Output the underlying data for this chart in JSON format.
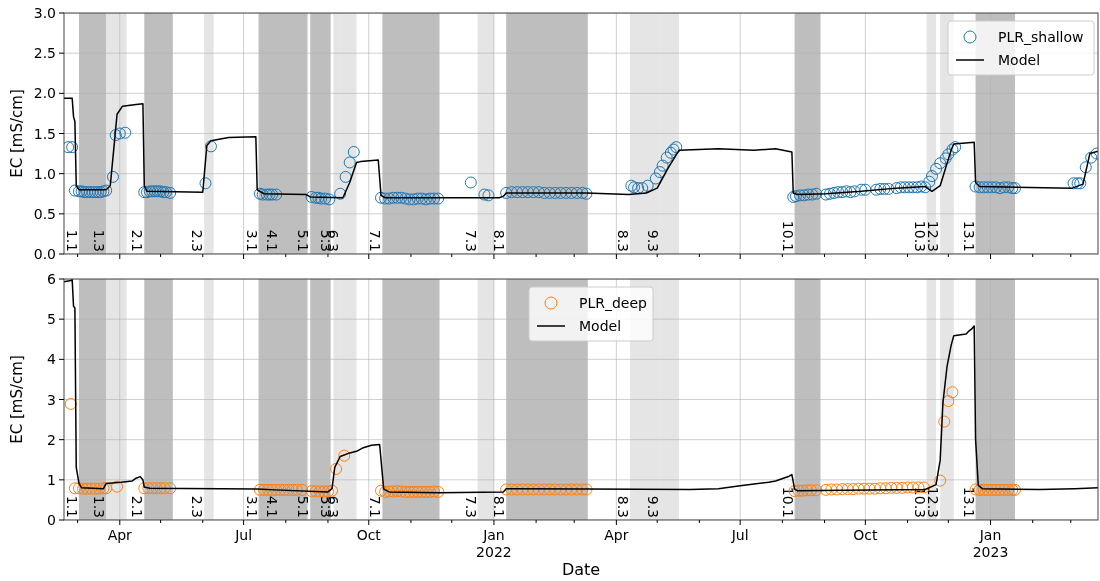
{
  "chart_data": [
    {
      "type": "line",
      "ylabel": "EC [mS/cm]",
      "xlim": [
        "2021-02-19",
        "2023-03-21"
      ],
      "ylim": [
        0,
        3
      ],
      "yticks": [
        {
          "value": 0,
          "label": "0.0"
        },
        0.5,
        {
          "value": 1,
          "label": "1.0"
        },
        1.5,
        {
          "value": 2,
          "label": "2.0"
        },
        2.5,
        {
          "value": 3,
          "label": "3.0"
        }
      ],
      "xticks": [
        {
          "value": "2021-03-01",
          "label": null
        },
        "2021-04-01",
        {
          "value": "2021-05-01",
          "label": null
        },
        {
          "value": "2021-06-01",
          "label": null
        },
        "2021-07-01",
        {
          "value": "2021-08-01",
          "label": null
        },
        {
          "value": "2021-09-01",
          "label": null
        },
        "2021-10-01",
        {
          "value": "2021-11-01",
          "label": null
        },
        {
          "value": "2021-12-01",
          "label": null
        },
        "2022-01-01",
        {
          "value": "2022-02-01",
          "label": null
        },
        {
          "value": "2022-03-01",
          "label": null
        },
        "2022-04-01",
        {
          "value": "2022-05-01",
          "label": null
        },
        {
          "value": "2022-06-01",
          "label": null
        },
        "2022-07-01",
        {
          "value": "2022-08-01",
          "label": null
        },
        {
          "value": "2022-09-01",
          "label": null
        },
        "2022-10-01",
        {
          "value": "2022-11-01",
          "label": null
        },
        {
          "value": "2022-12-01",
          "label": null
        },
        "2023-01-01",
        {
          "value": "2023-02-01",
          "label": null
        },
        {
          "value": "2023-03-01",
          "label": null
        }
      ],
      "tick_labels": "y",
      "grid": true,
      "legend": "top right",
      "bands": [
        {
          "axis": "x",
          "from": "2021-03-02",
          "to": "2021-03-22",
          "label": "1.1",
          "color": "#bebebe"
        },
        {
          "axis": "x",
          "from": "2021-03-22",
          "to": "2021-04-06",
          "label": "1.3",
          "color": "#e5e5e5"
        },
        {
          "axis": "x",
          "from": "2021-04-19",
          "to": "2021-05-10",
          "label": "2.1",
          "color": "#bebebe"
        },
        {
          "axis": "x",
          "from": "2021-06-02",
          "to": "2021-06-09",
          "label": "2.3",
          "color": "#e5e5e5"
        },
        {
          "axis": "x",
          "from": "2021-07-12",
          "to": "2021-07-27",
          "label": "3.1",
          "color": "#bebebe"
        },
        {
          "axis": "x",
          "from": "2021-07-27",
          "to": "2021-08-17",
          "label": "4.1",
          "color": "#bebebe"
        },
        {
          "axis": "x",
          "from": "2021-08-19",
          "to": "2021-09-03",
          "label": "5.1",
          "color": "#bebebe"
        },
        {
          "axis": "x",
          "from": "2021-09-05",
          "to": "2021-09-10",
          "label": "5.3",
          "color": "#e5e5e5"
        },
        {
          "axis": "x",
          "from": "2021-09-10",
          "to": "2021-09-22",
          "label": "6.3",
          "color": "#e5e5e5"
        },
        {
          "axis": "x",
          "from": "2021-10-11",
          "to": "2021-11-22",
          "label": "7.1",
          "color": "#bebebe"
        },
        {
          "axis": "x",
          "from": "2021-12-20",
          "to": "2022-01-01",
          "label": "7.3",
          "color": "#e5e5e5"
        },
        {
          "axis": "x",
          "from": "2022-01-10",
          "to": "2022-03-11",
          "label": "8.1",
          "color": "#bebebe"
        },
        {
          "axis": "x",
          "from": "2022-04-11",
          "to": "2022-05-03",
          "label": "8.3",
          "color": "#e5e5e5"
        },
        {
          "axis": "x",
          "from": "2022-05-03",
          "to": "2022-05-17",
          "label": "9.3",
          "color": "#e5e5e5"
        },
        {
          "axis": "x",
          "from": "2022-08-10",
          "to": "2022-08-29",
          "label": "10.1",
          "color": "#bebebe"
        },
        {
          "axis": "x",
          "from": "2022-11-15",
          "to": "2022-11-22",
          "label": "10.3",
          "color": "#e5e5e5"
        },
        {
          "axis": "x",
          "from": "2022-11-25",
          "to": "2022-12-05",
          "label": "12.3",
          "color": "#e5e5e5"
        },
        {
          "axis": "x",
          "from": "2022-12-21",
          "to": "2023-01-19",
          "label": "13.1",
          "color": "#bebebe"
        }
      ],
      "series": [
        {
          "name": "PLR_shallow",
          "type": "scatter",
          "marker": "circle",
          "color": "#1f77b4",
          "x": [
            "2021-02-22",
            "2021-02-25",
            "2021-02-27",
            "2021-03-02",
            "2021-03-04",
            "2021-03-06",
            "2021-03-08",
            "2021-03-10",
            "2021-03-12",
            "2021-03-14",
            "2021-03-16",
            "2021-03-18",
            "2021-03-20",
            "2021-03-22",
            "2021-03-27",
            "2021-03-29",
            "2021-04-01",
            "2021-04-05",
            "2021-04-19",
            "2021-04-21",
            "2021-04-23",
            "2021-04-25",
            "2021-04-27",
            "2021-04-29",
            "2021-05-01",
            "2021-05-03",
            "2021-05-05",
            "2021-05-08",
            "2021-06-03",
            "2021-06-07",
            "2021-07-13",
            "2021-07-15",
            "2021-07-18",
            "2021-07-20",
            "2021-07-22",
            "2021-07-25",
            "2021-08-20",
            "2021-08-23",
            "2021-08-25",
            "2021-08-27",
            "2021-08-30",
            "2021-09-02",
            "2021-09-10",
            "2021-09-14",
            "2021-09-17",
            "2021-09-20",
            "2021-10-10",
            "2021-10-13",
            "2021-10-16",
            "2021-10-19",
            "2021-10-22",
            "2021-10-25",
            "2021-10-28",
            "2021-10-31",
            "2021-11-03",
            "2021-11-06",
            "2021-11-09",
            "2021-11-12",
            "2021-11-15",
            "2021-11-18",
            "2021-11-21",
            "2021-12-15",
            "2021-12-25",
            "2021-12-28",
            "2022-01-10",
            "2022-01-14",
            "2022-01-18",
            "2022-01-22",
            "2022-01-26",
            "2022-01-30",
            "2022-02-03",
            "2022-02-07",
            "2022-02-11",
            "2022-02-15",
            "2022-02-19",
            "2022-02-23",
            "2022-02-27",
            "2022-03-03",
            "2022-03-07",
            "2022-03-10",
            "2022-04-12",
            "2022-04-14",
            "2022-04-17",
            "2022-04-20",
            "2022-04-24",
            "2022-04-30",
            "2022-05-03",
            "2022-05-05",
            "2022-05-08",
            "2022-05-11",
            "2022-05-13",
            "2022-05-15",
            "2022-08-09",
            "2022-08-11",
            "2022-08-14",
            "2022-08-17",
            "2022-08-20",
            "2022-08-23",
            "2022-08-26",
            "2022-09-02",
            "2022-09-05",
            "2022-09-08",
            "2022-09-11",
            "2022-09-14",
            "2022-09-17",
            "2022-09-20",
            "2022-09-23",
            "2022-09-28",
            "2022-10-01",
            "2022-10-09",
            "2022-10-12",
            "2022-10-15",
            "2022-10-18",
            "2022-10-24",
            "2022-10-27",
            "2022-10-30",
            "2022-11-02",
            "2022-11-05",
            "2022-11-08",
            "2022-11-11",
            "2022-11-14",
            "2022-11-17",
            "2022-11-19",
            "2022-11-22",
            "2022-11-25",
            "2022-11-29",
            "2022-12-01",
            "2022-12-04",
            "2022-12-06",
            "2022-12-21",
            "2022-12-24",
            "2022-12-27",
            "2022-12-30",
            "2023-01-02",
            "2023-01-05",
            "2023-01-08",
            "2023-01-11",
            "2023-01-14",
            "2023-01-17",
            "2023-01-19",
            "2023-03-03",
            "2023-03-06",
            "2023-03-08",
            "2023-03-12",
            "2023-03-16",
            "2023-03-20"
          ],
          "values": [
            1.33,
            1.33,
            0.79,
            0.78,
            0.78,
            0.77,
            0.77,
            0.77,
            0.77,
            0.77,
            0.77,
            0.77,
            0.78,
            0.79,
            0.96,
            1.48,
            1.5,
            1.51,
            0.77,
            0.77,
            0.78,
            0.78,
            0.78,
            0.78,
            0.78,
            0.77,
            0.77,
            0.76,
            0.88,
            1.34,
            0.75,
            0.74,
            0.74,
            0.74,
            0.74,
            0.74,
            0.71,
            0.7,
            0.7,
            0.69,
            0.69,
            0.68,
            0.75,
            0.96,
            1.14,
            1.27,
            0.7,
            0.69,
            0.69,
            0.7,
            0.7,
            0.7,
            0.69,
            0.68,
            0.68,
            0.69,
            0.69,
            0.68,
            0.69,
            0.69,
            0.69,
            0.89,
            0.74,
            0.73,
            0.76,
            0.77,
            0.77,
            0.77,
            0.77,
            0.77,
            0.77,
            0.76,
            0.76,
            0.76,
            0.76,
            0.76,
            0.76,
            0.76,
            0.76,
            0.75,
            0.85,
            0.83,
            0.82,
            0.82,
            0.85,
            0.94,
            1.02,
            1.1,
            1.2,
            1.26,
            1.3,
            1.33,
            0.71,
            0.72,
            0.73,
            0.73,
            0.74,
            0.74,
            0.75,
            0.74,
            0.75,
            0.76,
            0.77,
            0.77,
            0.78,
            0.77,
            0.78,
            0.8,
            0.8,
            0.8,
            0.81,
            0.81,
            0.81,
            0.82,
            0.83,
            0.83,
            0.83,
            0.83,
            0.83,
            0.84,
            0.83,
            0.9,
            0.97,
            1.06,
            1.13,
            1.19,
            1.24,
            1.3,
            1.33,
            0.84,
            0.83,
            0.83,
            0.83,
            0.83,
            0.83,
            0.82,
            0.83,
            0.83,
            0.82,
            0.82,
            0.88,
            0.88,
            0.88,
            1.08,
            1.2,
            1.25
          ]
        },
        {
          "name": "Model",
          "type": "line",
          "color": "#000000",
          "x": [
            "2021-02-19",
            "2021-02-25",
            "2021-02-26",
            "2021-02-27",
            "2021-02-28",
            "2021-03-02",
            "2021-03-22",
            "2021-03-25",
            "2021-03-28",
            "2021-03-30",
            "2021-04-03",
            "2021-04-13",
            "2021-04-18",
            "2021-04-19",
            "2021-04-21",
            "2021-06-01",
            "2021-06-04",
            "2021-06-07",
            "2021-06-20",
            "2021-07-10",
            "2021-07-11",
            "2021-07-16",
            "2021-08-16",
            "2021-08-19",
            "2021-09-12",
            "2021-09-17",
            "2021-09-22",
            "2021-09-25",
            "2021-10-08",
            "2021-10-10",
            "2021-10-13",
            "2022-01-05",
            "2022-01-08",
            "2022-01-10",
            "2022-03-10",
            "2022-04-10",
            "2022-04-23",
            "2022-05-01",
            "2022-05-09",
            "2022-05-17",
            "2022-06-15",
            "2022-07-11",
            "2022-07-27",
            "2022-08-08",
            "2022-08-09",
            "2022-08-12",
            "2022-09-02",
            "2022-09-28",
            "2022-10-24",
            "2022-11-14",
            "2022-11-19",
            "2022-11-25",
            "2022-12-03",
            "2022-12-05",
            "2022-12-20",
            "2022-12-21",
            "2022-12-24",
            "2023-03-02",
            "2023-03-10",
            "2023-03-15",
            "2023-03-21"
          ],
          "values": [
            1.94,
            1.94,
            1.71,
            1.65,
            0.85,
            0.8,
            0.8,
            0.85,
            1.38,
            1.74,
            1.84,
            1.86,
            1.87,
            0.85,
            0.78,
            0.77,
            1.35,
            1.41,
            1.45,
            1.46,
            0.8,
            0.75,
            0.74,
            0.71,
            0.7,
            0.89,
            1.14,
            1.15,
            1.17,
            0.73,
            0.7,
            0.7,
            0.72,
            0.76,
            0.76,
            0.74,
            0.76,
            0.82,
            1.07,
            1.29,
            1.31,
            1.29,
            1.31,
            1.27,
            0.76,
            0.74,
            0.75,
            0.78,
            0.82,
            0.84,
            0.78,
            0.85,
            1.29,
            1.37,
            1.39,
            0.89,
            0.84,
            0.82,
            0.87,
            1.25,
            1.28
          ]
        }
      ]
    },
    {
      "type": "line",
      "ylabel": "EC [mS/cm]",
      "xlabel": "Date",
      "xlim": [
        "2021-02-19",
        "2023-03-21"
      ],
      "ylim": [
        0,
        6
      ],
      "yticks": [
        0,
        1,
        2,
        3,
        4,
        5,
        6
      ],
      "xticks": [
        {
          "value": "2021-03-01",
          "label": null
        },
        {
          "value": "2021-04-01",
          "label": "Apr"
        },
        {
          "value": "2021-05-01",
          "label": null
        },
        {
          "value": "2021-06-01",
          "label": null
        },
        {
          "value": "2021-07-01",
          "label": "Jul"
        },
        {
          "value": "2021-08-01",
          "label": null
        },
        {
          "value": "2021-09-01",
          "label": null
        },
        {
          "value": "2021-10-01",
          "label": "Oct"
        },
        {
          "value": "2021-11-01",
          "label": null
        },
        {
          "value": "2021-12-01",
          "label": null
        },
        {
          "value": "2022-01-01",
          "label": "Jan\n2022"
        },
        {
          "value": "2022-02-01",
          "label": null
        },
        {
          "value": "2022-03-01",
          "label": null
        },
        {
          "value": "2022-04-01",
          "label": "Apr"
        },
        {
          "value": "2022-05-01",
          "label": null
        },
        {
          "value": "2022-06-01",
          "label": null
        },
        {
          "value": "2022-07-01",
          "label": "Jul"
        },
        {
          "value": "2022-08-01",
          "label": null
        },
        {
          "value": "2022-09-01",
          "label": null
        },
        {
          "value": "2022-10-01",
          "label": "Oct"
        },
        {
          "value": "2022-11-01",
          "label": null
        },
        {
          "value": "2022-12-01",
          "label": null
        },
        {
          "value": "2023-01-01",
          "label": "Jan\n2023"
        },
        {
          "value": "2023-02-01",
          "label": null
        },
        {
          "value": "2023-03-01",
          "label": null
        }
      ],
      "grid": true,
      "legend": "top",
      "bands": [
        {
          "axis": "x",
          "from": "2021-03-02",
          "to": "2021-03-22",
          "label": "1.1",
          "color": "#bebebe"
        },
        {
          "axis": "x",
          "from": "2021-03-22",
          "to": "2021-04-06",
          "label": "1.3",
          "color": "#e5e5e5"
        },
        {
          "axis": "x",
          "from": "2021-04-19",
          "to": "2021-05-10",
          "label": "2.1",
          "color": "#bebebe"
        },
        {
          "axis": "x",
          "from": "2021-06-02",
          "to": "2021-06-09",
          "label": "2.3",
          "color": "#e5e5e5"
        },
        {
          "axis": "x",
          "from": "2021-07-12",
          "to": "2021-07-27",
          "label": "3.1",
          "color": "#bebebe"
        },
        {
          "axis": "x",
          "from": "2021-07-27",
          "to": "2021-08-17",
          "label": "4.1",
          "color": "#bebebe"
        },
        {
          "axis": "x",
          "from": "2021-08-19",
          "to": "2021-09-03",
          "label": "5.1",
          "color": "#bebebe"
        },
        {
          "axis": "x",
          "from": "2021-09-05",
          "to": "2021-09-10",
          "label": "5.3",
          "color": "#e5e5e5"
        },
        {
          "axis": "x",
          "from": "2021-09-10",
          "to": "2021-09-22",
          "label": "6.3",
          "color": "#e5e5e5"
        },
        {
          "axis": "x",
          "from": "2021-10-11",
          "to": "2021-11-22",
          "label": "7.1",
          "color": "#bebebe"
        },
        {
          "axis": "x",
          "from": "2021-12-20",
          "to": "2022-01-01",
          "label": "7.3",
          "color": "#e5e5e5"
        },
        {
          "axis": "x",
          "from": "2022-01-10",
          "to": "2022-03-11",
          "label": "8.1",
          "color": "#bebebe"
        },
        {
          "axis": "x",
          "from": "2022-04-11",
          "to": "2022-05-03",
          "label": "8.3",
          "color": "#e5e5e5"
        },
        {
          "axis": "x",
          "from": "2022-05-03",
          "to": "2022-05-17",
          "label": "9.3",
          "color": "#e5e5e5"
        },
        {
          "axis": "x",
          "from": "2022-08-10",
          "to": "2022-08-29",
          "label": "10.1",
          "color": "#bebebe"
        },
        {
          "axis": "x",
          "from": "2022-11-15",
          "to": "2022-11-22",
          "label": "10.3",
          "color": "#e5e5e5"
        },
        {
          "axis": "x",
          "from": "2022-11-25",
          "to": "2022-12-05",
          "label": "12.3",
          "color": "#e5e5e5"
        },
        {
          "axis": "x",
          "from": "2022-12-21",
          "to": "2023-01-19",
          "label": "13.1",
          "color": "#bebebe"
        }
      ],
      "series": [
        {
          "name": "PLR_deep",
          "type": "scatter",
          "marker": "circle",
          "color": "#ff7f0e",
          "x": [
            "2021-02-24",
            "2021-02-27",
            "2021-03-02",
            "2021-03-05",
            "2021-03-08",
            "2021-03-11",
            "2021-03-14",
            "2021-03-17",
            "2021-03-20",
            "2021-03-22",
            "2021-03-30",
            "2021-04-19",
            "2021-04-22",
            "2021-04-25",
            "2021-04-28",
            "2021-05-01",
            "2021-05-04",
            "2021-05-08",
            "2021-07-13",
            "2021-07-16",
            "2021-07-19",
            "2021-07-22",
            "2021-07-25",
            "2021-07-28",
            "2021-07-31",
            "2021-08-03",
            "2021-08-06",
            "2021-08-09",
            "2021-08-13",
            "2021-08-20",
            "2021-08-23",
            "2021-08-26",
            "2021-08-29",
            "2021-09-01",
            "2021-09-04",
            "2021-09-07",
            "2021-09-13",
            "2021-10-10",
            "2021-10-13",
            "2021-10-16",
            "2021-10-19",
            "2021-10-22",
            "2021-10-25",
            "2021-10-28",
            "2021-10-31",
            "2021-11-03",
            "2021-11-06",
            "2021-11-09",
            "2021-11-12",
            "2021-11-15",
            "2021-11-18",
            "2021-11-21",
            "2022-01-10",
            "2022-01-14",
            "2022-01-18",
            "2022-01-22",
            "2022-01-26",
            "2022-01-30",
            "2022-02-03",
            "2022-02-07",
            "2022-02-11",
            "2022-02-15",
            "2022-02-19",
            "2022-02-23",
            "2022-02-27",
            "2022-03-03",
            "2022-03-07",
            "2022-03-10",
            "2022-08-10",
            "2022-08-13",
            "2022-08-16",
            "2022-08-19",
            "2022-08-22",
            "2022-08-26",
            "2022-09-02",
            "2022-09-06",
            "2022-09-10",
            "2022-09-14",
            "2022-09-18",
            "2022-09-22",
            "2022-09-26",
            "2022-09-30",
            "2022-10-04",
            "2022-10-08",
            "2022-10-12",
            "2022-10-16",
            "2022-10-20",
            "2022-10-24",
            "2022-10-28",
            "2022-11-01",
            "2022-11-05",
            "2022-11-09",
            "2022-11-13",
            "2022-11-25",
            "2022-11-28",
            "2022-12-01",
            "2022-12-04",
            "2022-12-21",
            "2022-12-24",
            "2022-12-27",
            "2022-12-30",
            "2023-01-02",
            "2023-01-05",
            "2023-01-08",
            "2023-01-11",
            "2023-01-14",
            "2023-01-17",
            "2023-01-19"
          ],
          "values": [
            2.89,
            0.79,
            0.79,
            0.78,
            0.78,
            0.78,
            0.78,
            0.78,
            0.79,
            0.79,
            0.83,
            0.79,
            0.79,
            0.79,
            0.79,
            0.79,
            0.79,
            0.79,
            0.75,
            0.75,
            0.75,
            0.75,
            0.75,
            0.75,
            0.75,
            0.75,
            0.75,
            0.75,
            0.75,
            0.72,
            0.71,
            0.71,
            0.71,
            0.71,
            0.73,
            1.27,
            1.6,
            0.73,
            0.7,
            0.71,
            0.71,
            0.72,
            0.71,
            0.7,
            0.7,
            0.7,
            0.7,
            0.7,
            0.7,
            0.7,
            0.71,
            0.7,
            0.76,
            0.76,
            0.76,
            0.76,
            0.76,
            0.76,
            0.76,
            0.76,
            0.76,
            0.76,
            0.76,
            0.76,
            0.76,
            0.76,
            0.76,
            0.76,
            0.72,
            0.73,
            0.73,
            0.74,
            0.74,
            0.74,
            0.75,
            0.76,
            0.76,
            0.77,
            0.77,
            0.77,
            0.78,
            0.78,
            0.78,
            0.78,
            0.79,
            0.79,
            0.8,
            0.8,
            0.8,
            0.81,
            0.81,
            0.81,
            0.81,
            0.98,
            2.45,
            2.96,
            3.18,
            0.76,
            0.75,
            0.75,
            0.75,
            0.75,
            0.75,
            0.75,
            0.75,
            0.75,
            0.75,
            0.75
          ]
        },
        {
          "name": "Model",
          "type": "line",
          "color": "#000000",
          "x": [
            "2021-02-19",
            "2021-02-24",
            "2021-02-25",
            "2021-02-26",
            "2021-02-27",
            "2021-02-28",
            "2021-03-02",
            "2021-03-04",
            "2021-03-20",
            "2021-03-22",
            "2021-04-02",
            "2021-04-10",
            "2021-04-13",
            "2021-04-16",
            "2021-04-18",
            "2021-04-19",
            "2021-04-23",
            "2021-07-11",
            "2021-07-24",
            "2021-09-01",
            "2021-09-04",
            "2021-09-06",
            "2021-09-10",
            "2021-09-17",
            "2021-09-22",
            "2021-09-27",
            "2021-10-03",
            "2021-10-09",
            "2021-10-11",
            "2021-10-12",
            "2021-10-16",
            "2021-11-22",
            "2022-01-08",
            "2022-01-10",
            "2022-03-10",
            "2022-05-25",
            "2022-06-15",
            "2022-07-01",
            "2022-07-22",
            "2022-07-27",
            "2022-08-06",
            "2022-08-08",
            "2022-08-10",
            "2022-08-12",
            "2022-09-15",
            "2022-11-14",
            "2022-11-22",
            "2022-11-25",
            "2022-11-27",
            "2022-11-30",
            "2022-12-03",
            "2022-12-05",
            "2022-12-14",
            "2022-12-16",
            "2022-12-18",
            "2022-12-20",
            "2022-12-21",
            "2022-12-23",
            "2022-12-26",
            "2023-02-06",
            "2023-03-04",
            "2023-03-21"
          ],
          "values": [
            5.93,
            5.96,
            5.99,
            5.32,
            5.28,
            1.31,
            0.91,
            0.8,
            0.78,
            0.91,
            0.94,
            0.97,
            1.04,
            1.08,
            1.0,
            0.82,
            0.79,
            0.77,
            0.75,
            0.7,
            0.78,
            1.31,
            1.58,
            1.67,
            1.71,
            1.8,
            1.86,
            1.88,
            1.13,
            0.77,
            0.7,
            0.68,
            0.7,
            0.78,
            0.77,
            0.76,
            0.78,
            0.85,
            0.94,
            0.97,
            1.09,
            1.13,
            0.77,
            0.73,
            0.74,
            0.76,
            0.88,
            1.49,
            2.91,
            3.81,
            4.34,
            4.59,
            4.63,
            4.7,
            4.75,
            4.83,
            2.02,
            0.86,
            0.78,
            0.76,
            0.78,
            0.8
          ]
        }
      ]
    }
  ]
}
